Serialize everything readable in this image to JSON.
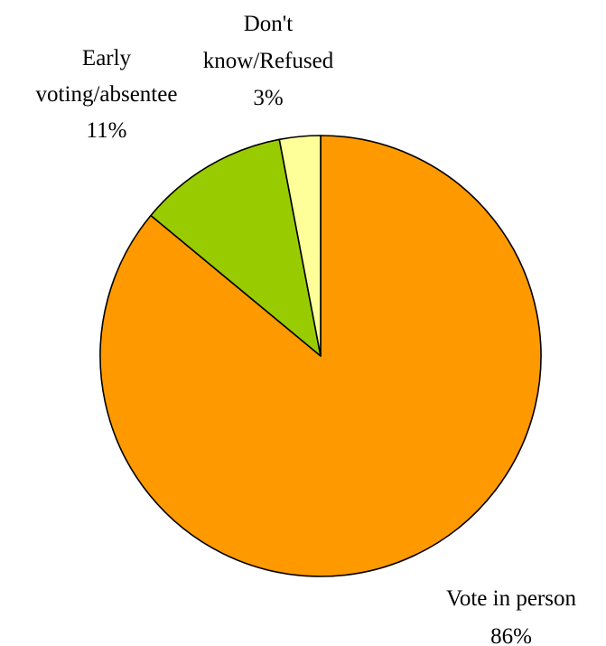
{
  "chart_data": {
    "type": "pie",
    "start_angle": "12 o'clock",
    "direction": "clockwise",
    "slices": [
      {
        "label_lines": [
          "Vote in person",
          "86%"
        ],
        "value": 86,
        "color": "#FF9900"
      },
      {
        "label_lines": [
          "Early",
          "voting/absentee",
          "11%"
        ],
        "value": 11,
        "color": "#99CC00"
      },
      {
        "label_lines": [
          "Don't",
          "know/Refused",
          "3%"
        ],
        "value": 3,
        "color": "#FFFF99"
      }
    ],
    "outline_color": "#000000",
    "background": "#FFFFFF"
  }
}
